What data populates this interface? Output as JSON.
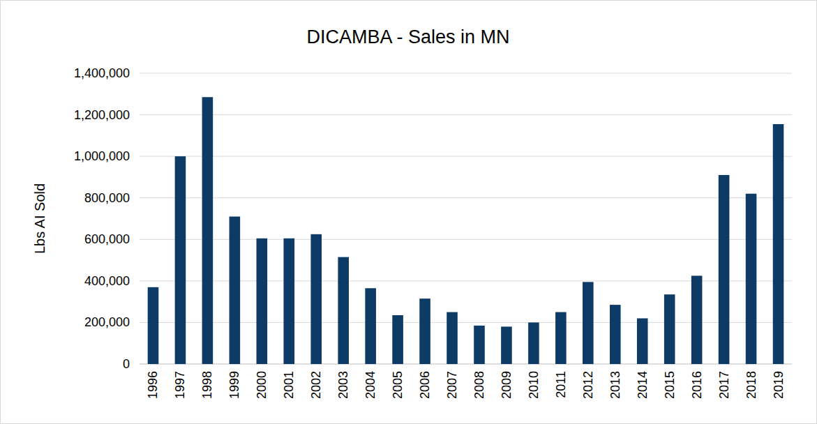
{
  "chart_data": {
    "type": "bar",
    "title": "DICAMBA - Sales in MN",
    "y_label": "Lbs AI Sold",
    "categories": [
      "1996",
      "1997",
      "1998",
      "1999",
      "2000",
      "2001",
      "2002",
      "2003",
      "2004",
      "2005",
      "2006",
      "2007",
      "2008",
      "2009",
      "2010",
      "2011",
      "2012",
      "2013",
      "2014",
      "2015",
      "2016",
      "2017",
      "2018",
      "2019"
    ],
    "values": [
      370000,
      1000000,
      1285000,
      710000,
      605000,
      605000,
      625000,
      515000,
      365000,
      235000,
      315000,
      250000,
      185000,
      180000,
      200000,
      250000,
      395000,
      285000,
      220000,
      335000,
      425000,
      910000,
      820000,
      1155000
    ],
    "color": "#0e3a66",
    "ylim": [
      0,
      1400000
    ],
    "yticks": [
      0,
      {
        "value": 200000,
        "label": "200,000"
      },
      {
        "value": 400000,
        "label": "400,000"
      },
      {
        "value": 600000,
        "label": "600,000"
      },
      {
        "value": 800000,
        "label": "800,000"
      },
      {
        "value": 1000000,
        "label": "1,000,000"
      },
      {
        "value": 1200000,
        "label": "1,200,000"
      },
      {
        "value": 1400000,
        "label": "1,400,000"
      }
    ],
    "grid": true
  }
}
